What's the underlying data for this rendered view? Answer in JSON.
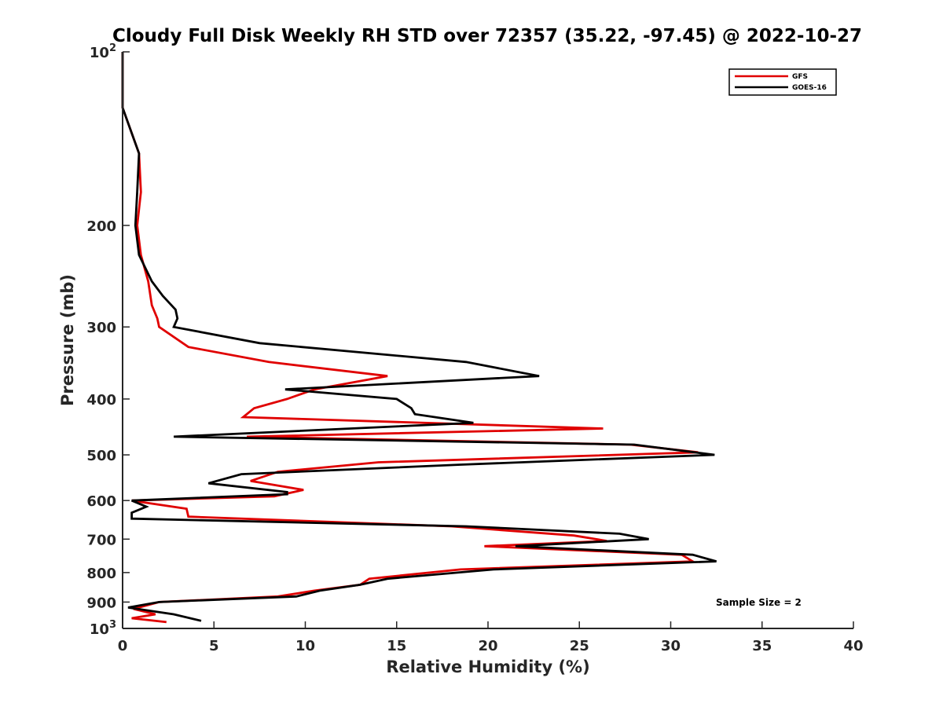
{
  "chart_data": {
    "type": "line",
    "title": "Cloudy Full Disk Weekly RH STD over 72357 (35.22, -97.45) @ 2022-10-27",
    "xlabel": "Relative Humidity (%)",
    "ylabel": "Pressure (mb)",
    "xlim": [
      0,
      40
    ],
    "ylim": [
      100,
      1000
    ],
    "yscale": "log",
    "y_reversed": true,
    "grid": false,
    "legend_position": "top-right",
    "x_ticks": [
      0,
      5,
      10,
      15,
      20,
      25,
      30,
      35,
      40
    ],
    "x_tick_labels": [
      "0",
      "5",
      "10",
      "15",
      "20",
      "25",
      "30",
      "35",
      "40"
    ],
    "y_ticks": [
      100,
      200,
      300,
      400,
      500,
      600,
      700,
      800,
      900,
      1000
    ],
    "y_tick_labels": [
      {
        "base": "10",
        "exp": "2"
      },
      {
        "base": "200",
        "exp": ""
      },
      {
        "base": "300",
        "exp": ""
      },
      {
        "base": "400",
        "exp": ""
      },
      {
        "base": "500",
        "exp": ""
      },
      {
        "base": "600",
        "exp": ""
      },
      {
        "base": "700",
        "exp": ""
      },
      {
        "base": "800",
        "exp": ""
      },
      {
        "base": "900",
        "exp": ""
      },
      {
        "base": "10",
        "exp": "3"
      }
    ],
    "annotation": "Sample Size = 2",
    "series": [
      {
        "name": "GFS",
        "color": "#e00000",
        "x": [
          0,
          0,
          0.9,
          1.0,
          0.8,
          1.0,
          1.4,
          1.6,
          1.9,
          2.0,
          3.6,
          8.0,
          14.5,
          10.5,
          9.0,
          7.2,
          6.6,
          26.3,
          6.8,
          27.8,
          31.5,
          14.0,
          8.5,
          7.0,
          9.9,
          8.3,
          0.5,
          3.5,
          3.6,
          18.0,
          24.7,
          26.5,
          19.8,
          30.6,
          31.2,
          18.5,
          13.5,
          13.0,
          10.5,
          8.5,
          2.0,
          0.6,
          1.8,
          0.5,
          2.4
        ],
        "y": [
          100,
          125,
          150,
          175,
          200,
          225,
          250,
          275,
          290,
          300,
          325,
          345,
          365,
          385,
          400,
          415,
          430,
          450,
          465,
          480,
          495,
          515,
          535,
          555,
          575,
          590,
          600,
          620,
          640,
          665,
          690,
          705,
          720,
          745,
          765,
          790,
          820,
          840,
          860,
          880,
          900,
          925,
          945,
          960,
          975
        ]
      },
      {
        "name": "GOES-16",
        "color": "#000000",
        "x": [
          0,
          0,
          0.9,
          0.8,
          0.7,
          0.9,
          1.6,
          2.2,
          2.9,
          3.0,
          2.8,
          7.5,
          18.8,
          22.8,
          8.9,
          15.0,
          15.8,
          16.0,
          19.2,
          2.8,
          28.0,
          32.4,
          18.5,
          6.5,
          4.7,
          9.0,
          9.0,
          0.5,
          1.3,
          0.5,
          0.5,
          18.8,
          27.2,
          28.8,
          21.5,
          31.2,
          32.5,
          20.3,
          14.5,
          13.0,
          10.8,
          9.5,
          2.0,
          0.3,
          2.8,
          4.3
        ],
        "y": [
          100,
          125,
          150,
          175,
          200,
          225,
          250,
          265,
          280,
          290,
          300,
          320,
          345,
          365,
          385,
          400,
          415,
          425,
          440,
          465,
          480,
          500,
          520,
          540,
          560,
          580,
          585,
          600,
          615,
          630,
          645,
          665,
          685,
          700,
          720,
          745,
          765,
          790,
          820,
          840,
          860,
          880,
          900,
          920,
          945,
          970
        ]
      }
    ]
  }
}
